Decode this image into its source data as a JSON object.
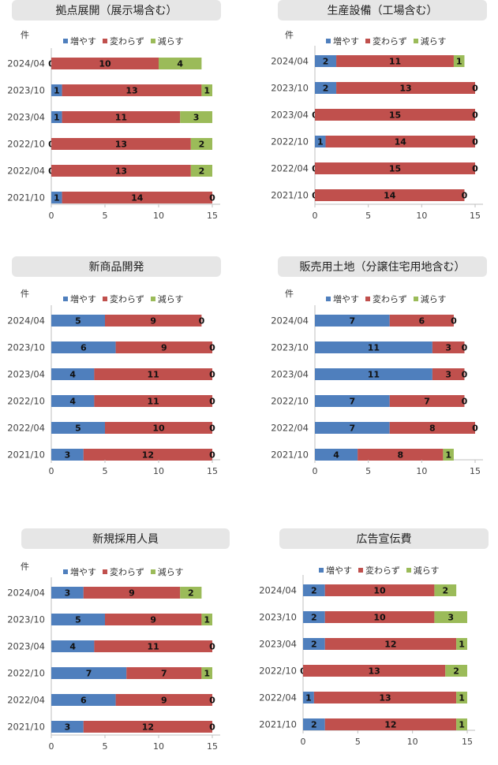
{
  "legend": {
    "increase": "増やす",
    "unchanged": "変わらず",
    "decrease": "減らす"
  },
  "colors": {
    "increase": "#4f7fbd",
    "unchanged": "#c0504d",
    "decrease": "#9bbb59"
  },
  "chart_data": [
    {
      "type": "bar",
      "orientation": "horizontal",
      "stacked": true,
      "title": "拠点展開（展示場含む）",
      "unit_label": "件",
      "categories": [
        "2024/04",
        "2023/10",
        "2023/04",
        "2022/10",
        "2022/04",
        "2021/10"
      ],
      "series": [
        {
          "name": "増やす",
          "values": [
            0,
            1,
            1,
            0,
            0,
            1
          ]
        },
        {
          "name": "変わらず",
          "values": [
            10,
            13,
            11,
            13,
            13,
            14
          ]
        },
        {
          "name": "減らす",
          "values": [
            4,
            1,
            3,
            2,
            2,
            0
          ]
        }
      ],
      "xlim": [
        0,
        15
      ],
      "xticks": [
        0,
        5,
        10,
        15
      ],
      "legend_position": "top"
    },
    {
      "type": "bar",
      "orientation": "horizontal",
      "stacked": true,
      "title": "生産設備（工場含む）",
      "unit_label": "件",
      "categories": [
        "2024/04",
        "2023/10",
        "2023/04",
        "2022/10",
        "2022/04",
        "2021/10"
      ],
      "series": [
        {
          "name": "増やす",
          "values": [
            2,
            2,
            0,
            1,
            0,
            0
          ]
        },
        {
          "name": "変わらず",
          "values": [
            11,
            13,
            15,
            14,
            15,
            14
          ]
        },
        {
          "name": "減らす",
          "values": [
            1,
            0,
            0,
            0,
            0,
            0
          ]
        }
      ],
      "xlim": [
        0,
        15
      ],
      "xticks": [
        0,
        5,
        10,
        15
      ],
      "legend_position": "top"
    },
    {
      "type": "bar",
      "orientation": "horizontal",
      "stacked": true,
      "title": "新商品開発",
      "unit_label": "件",
      "categories": [
        "2024/04",
        "2023/10",
        "2023/04",
        "2022/10",
        "2022/04",
        "2021/10"
      ],
      "series": [
        {
          "name": "増やす",
          "values": [
            5,
            6,
            4,
            4,
            5,
            3
          ]
        },
        {
          "name": "変わらず",
          "values": [
            9,
            9,
            11,
            11,
            10,
            12
          ]
        },
        {
          "name": "減らす",
          "values": [
            0,
            0,
            0,
            0,
            0,
            0
          ]
        }
      ],
      "xlim": [
        0,
        15
      ],
      "xticks": [
        0,
        5,
        10,
        15
      ],
      "legend_position": "top"
    },
    {
      "type": "bar",
      "orientation": "horizontal",
      "stacked": true,
      "title": "販売用土地（分譲住宅用地含む）",
      "unit_label": "件",
      "categories": [
        "2024/04",
        "2023/10",
        "2023/04",
        "2022/10",
        "2022/04",
        "2021/10"
      ],
      "series": [
        {
          "name": "増やす",
          "values": [
            7,
            11,
            11,
            7,
            7,
            4
          ]
        },
        {
          "name": "変わらず",
          "values": [
            6,
            3,
            3,
            7,
            8,
            8
          ]
        },
        {
          "name": "減らす",
          "values": [
            0,
            0,
            0,
            0,
            0,
            1
          ]
        }
      ],
      "xlim": [
        0,
        15
      ],
      "xticks": [
        0,
        5,
        10,
        15
      ],
      "legend_position": "top"
    },
    {
      "type": "bar",
      "orientation": "horizontal",
      "stacked": true,
      "title": "新規採用人員",
      "unit_label": "件",
      "categories": [
        "2024/04",
        "2023/10",
        "2023/04",
        "2022/10",
        "2022/04",
        "2021/10"
      ],
      "series": [
        {
          "name": "増やす",
          "values": [
            3,
            5,
            4,
            7,
            6,
            3
          ]
        },
        {
          "name": "変わらず",
          "values": [
            9,
            9,
            11,
            7,
            9,
            12
          ]
        },
        {
          "name": "減らす",
          "values": [
            2,
            1,
            0,
            1,
            0,
            0
          ]
        }
      ],
      "xlim": [
        0,
        15
      ],
      "xticks": [
        0,
        5,
        10,
        15
      ],
      "legend_position": "top"
    },
    {
      "type": "bar",
      "orientation": "horizontal",
      "stacked": true,
      "title": "広告宣伝費",
      "unit_label": "",
      "categories": [
        "2024/04",
        "2023/10",
        "2023/04",
        "2022/10",
        "2022/04",
        "2021/10"
      ],
      "series": [
        {
          "name": "増やす",
          "values": [
            2,
            2,
            2,
            0,
            1,
            2
          ]
        },
        {
          "name": "変わらず",
          "values": [
            10,
            10,
            12,
            13,
            13,
            12
          ]
        },
        {
          "name": "減らす",
          "values": [
            2,
            3,
            1,
            2,
            1,
            1
          ]
        }
      ],
      "xlim": [
        0,
        15
      ],
      "xticks": [
        0,
        5,
        10,
        15
      ],
      "legend_position": "top"
    }
  ]
}
